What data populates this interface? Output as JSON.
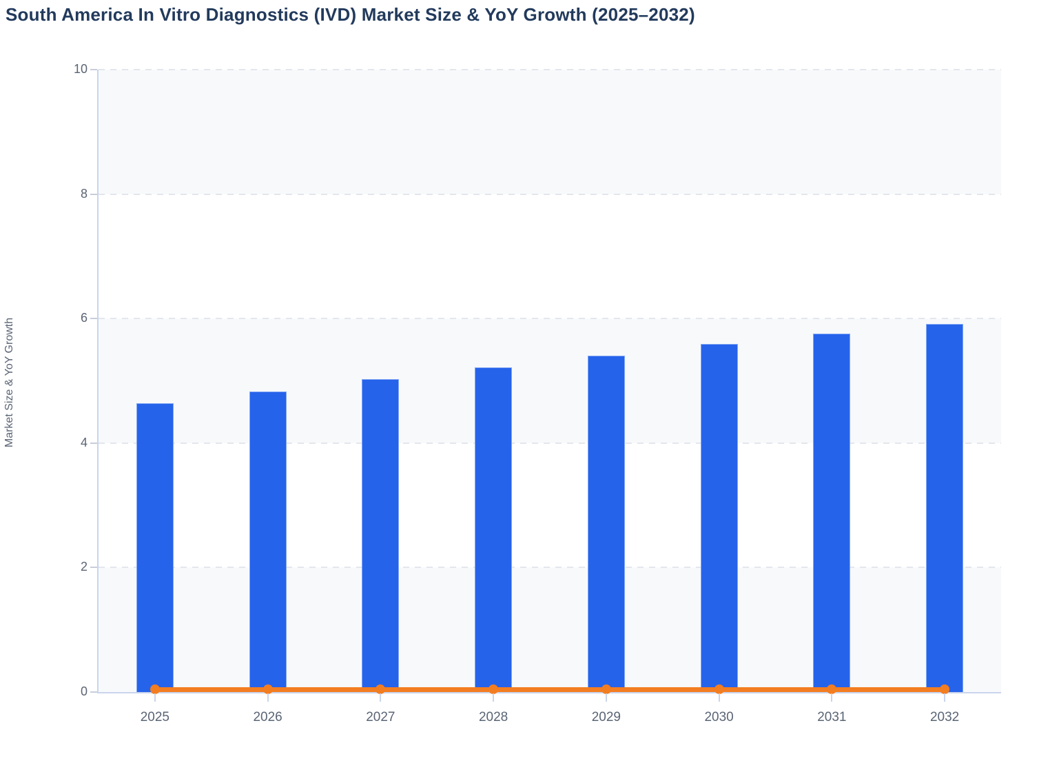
{
  "chart_data": {
    "type": "bar",
    "title": "South America In Vitro Diagnostics (IVD) Market Size & YoY Growth (2025–2032)",
    "xlabel": "",
    "ylabel": "Market Size & YoY Growth",
    "categories": [
      "2025",
      "2026",
      "2027",
      "2028",
      "2029",
      "2030",
      "2031",
      "2032"
    ],
    "series": [
      {
        "name": "Market Size",
        "kind": "bar",
        "color": "#2663eb",
        "values": [
          4.64,
          4.83,
          5.03,
          5.22,
          5.4,
          5.59,
          5.76,
          5.91
        ]
      },
      {
        "name": "YoY Growth",
        "kind": "line",
        "color": "#f37d21",
        "marker": "circle",
        "values": [
          0.04,
          0.04,
          0.04,
          0.04,
          0.04,
          0.04,
          0.04,
          0.04
        ]
      }
    ],
    "ylim": [
      0,
      10
    ],
    "yticks": [
      0,
      2,
      4,
      6,
      8,
      10
    ],
    "legend": "none",
    "grid": {
      "horizontal": true,
      "style": "dashed",
      "color": "#e3e6ec"
    },
    "style": {
      "band_colors": [
        "#f7f9fb",
        "#ffffff"
      ],
      "axis_color": "#c9d4ec",
      "tick_label_color": "#5a6474",
      "title_color": "#223a5c"
    }
  }
}
